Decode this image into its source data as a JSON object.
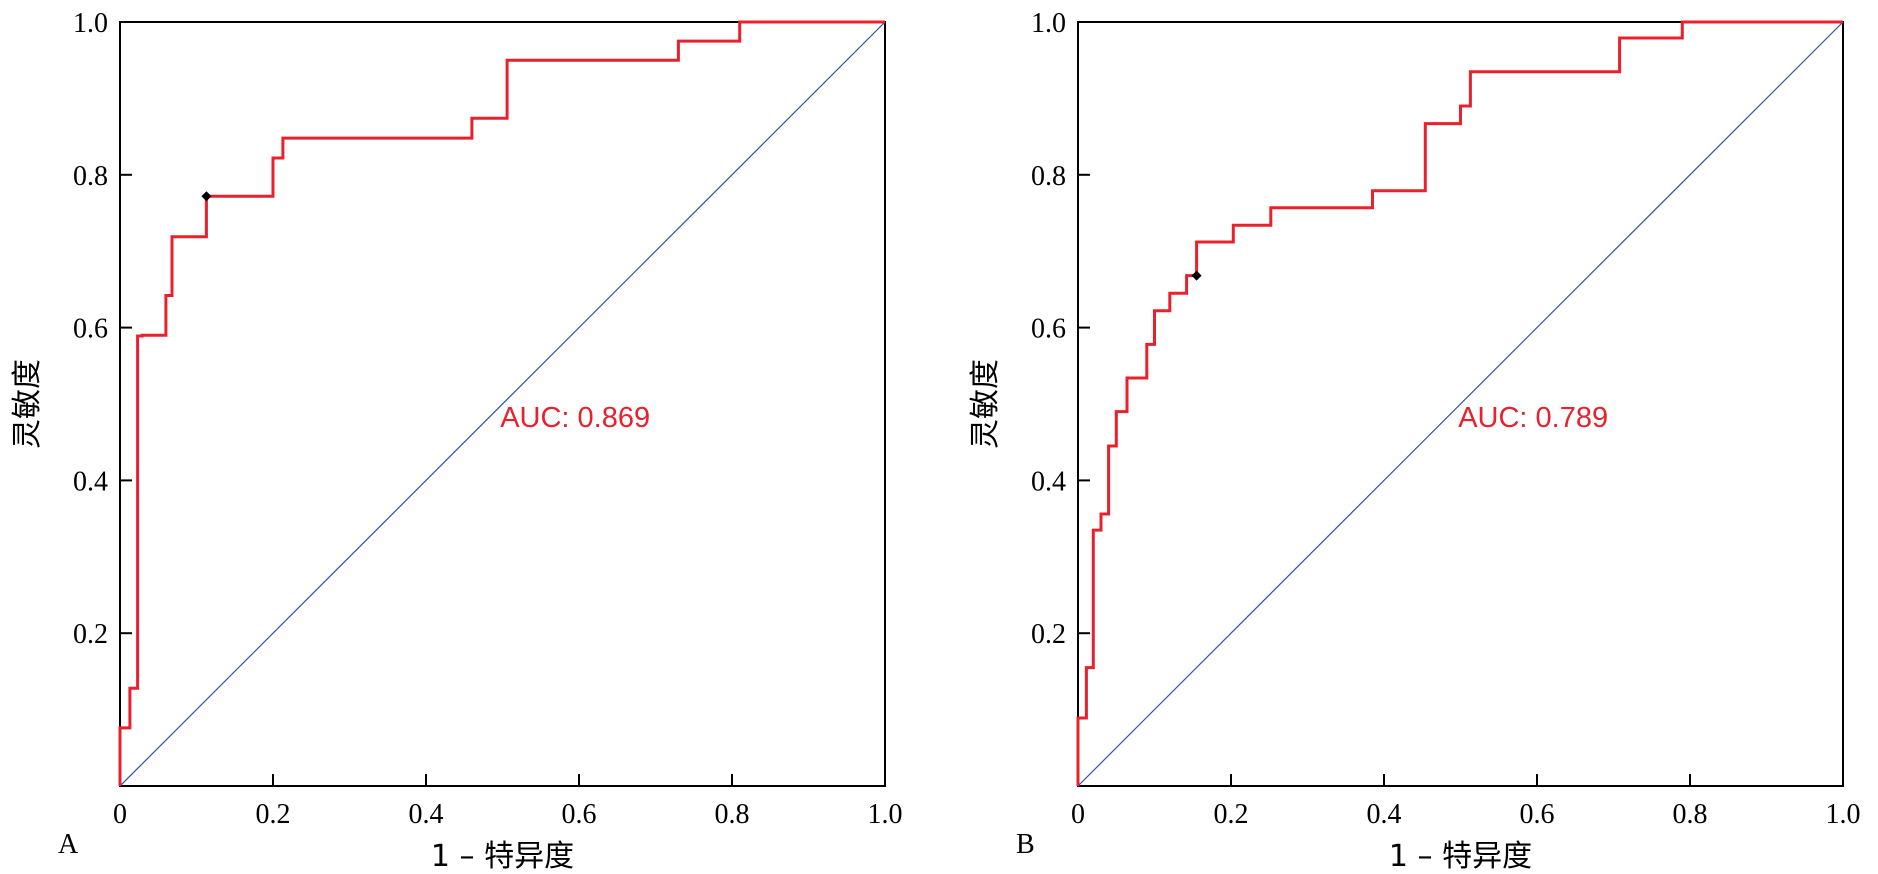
{
  "colors": {
    "roc": "#e8212d",
    "reference": "#3050a8",
    "cutoff": "#000000",
    "frame": "#000000",
    "auc_text": "#e8212d"
  },
  "chart_data": [
    {
      "type": "line",
      "panel_label": "A",
      "xlabel": "1 – 特异度",
      "ylabel": "灵敏度",
      "xlim": [
        0,
        1
      ],
      "ylim": [
        0,
        1
      ],
      "x_ticks": [
        "0",
        "0.2",
        "0.4",
        "0.6",
        "0.8",
        "1.0"
      ],
      "y_ticks": [
        "0.2",
        "0.4",
        "0.6",
        "0.8",
        "1.0"
      ],
      "auc_label": "AUC: 0.869",
      "grid": false,
      "reference_line": {
        "x": [
          0,
          1
        ],
        "y": [
          0,
          1
        ]
      },
      "cutoff_point": {
        "x": 0.113,
        "y": 0.772
      },
      "series": [
        {
          "x": [
            0,
            0,
            0.013,
            0.013,
            0.023,
            0.023,
            0.029,
            0.029,
            0.06,
            0.06,
            0.068,
            0.068,
            0.113,
            0.113,
            0.2,
            0.2,
            0.213,
            0.213,
            0.46,
            0.46,
            0.506,
            0.506,
            0.73,
            0.73,
            0.81,
            0.81,
            1.0
          ],
          "y": [
            0,
            0.076,
            0.076,
            0.128,
            0.128,
            0.589,
            0.589,
            0.59,
            0.59,
            0.642,
            0.642,
            0.719,
            0.719,
            0.772,
            0.772,
            0.822,
            0.822,
            0.848,
            0.848,
            0.874,
            0.874,
            0.95,
            0.95,
            0.975,
            0.975,
            1.0,
            1.0
          ]
        }
      ]
    },
    {
      "type": "line",
      "panel_label": "B",
      "xlabel": "1 – 特异度",
      "ylabel": "灵敏度",
      "xlim": [
        0,
        1
      ],
      "ylim": [
        0,
        1
      ],
      "x_ticks": [
        "0",
        "0.2",
        "0.4",
        "0.6",
        "0.8",
        "1.0"
      ],
      "y_ticks": [
        "0.2",
        "0.4",
        "0.6",
        "0.8",
        "1.0"
      ],
      "auc_label": "AUC: 0.789",
      "grid": false,
      "reference_line": {
        "x": [
          0,
          1
        ],
        "y": [
          0,
          1
        ]
      },
      "cutoff_point": {
        "x": 0.155,
        "y": 0.668
      },
      "series": [
        {
          "x": [
            0,
            0,
            0.011,
            0.011,
            0.02,
            0.02,
            0.03,
            0.03,
            0.04,
            0.04,
            0.05,
            0.05,
            0.064,
            0.064,
            0.09,
            0.09,
            0.1,
            0.1,
            0.12,
            0.12,
            0.142,
            0.142,
            0.155,
            0.155,
            0.203,
            0.203,
            0.252,
            0.252,
            0.385,
            0.385,
            0.454,
            0.454,
            0.5,
            0.5,
            0.513,
            0.513,
            0.708,
            0.708,
            0.79,
            0.79,
            0.95,
            0.95,
            1.0
          ],
          "y": [
            0,
            0.089,
            0.089,
            0.155,
            0.155,
            0.335,
            0.335,
            0.356,
            0.356,
            0.445,
            0.445,
            0.49,
            0.49,
            0.534,
            0.534,
            0.578,
            0.578,
            0.622,
            0.622,
            0.645,
            0.645,
            0.668,
            0.668,
            0.712,
            0.712,
            0.734,
            0.734,
            0.757,
            0.757,
            0.779,
            0.779,
            0.867,
            0.867,
            0.89,
            0.89,
            0.935,
            0.935,
            0.979,
            0.979,
            1.0,
            1.0,
            1.0,
            1.0
          ]
        }
      ]
    }
  ]
}
